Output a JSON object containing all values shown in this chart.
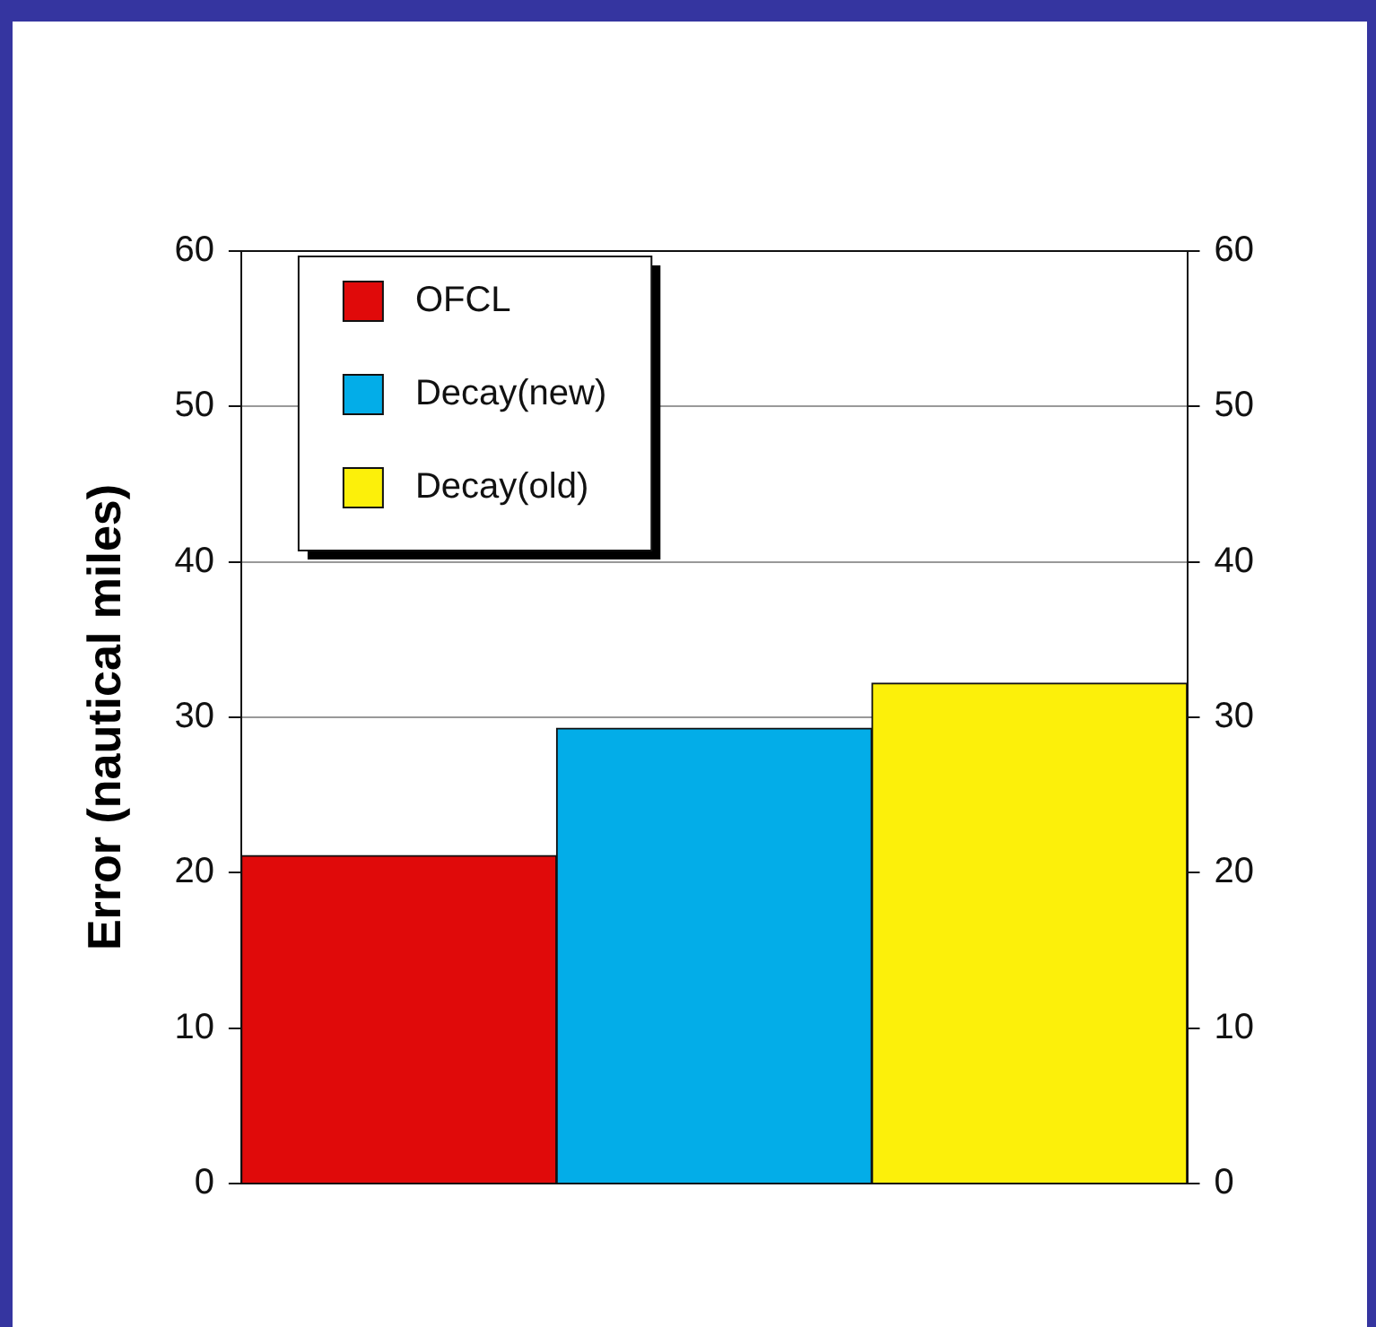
{
  "chart_data": {
    "type": "bar",
    "ylabel": "Error (nautical miles)",
    "categories": [
      null
    ],
    "series": [
      {
        "name": "OFCL",
        "color": "#e00a0a",
        "values": [
          21.1
        ]
      },
      {
        "name": "Decay(new)",
        "color": "#03ade8",
        "values": [
          29.3
        ]
      },
      {
        "name": "Decay(old)",
        "color": "#fcf00a",
        "values": [
          32.2
        ]
      }
    ],
    "ylim": [
      0,
      60
    ],
    "yticks": [
      0,
      10,
      20,
      30,
      40,
      50,
      60
    ],
    "y2lim": [
      0,
      60
    ],
    "y2ticks": [
      0,
      10,
      20,
      30,
      40,
      50,
      60
    ],
    "grid": "y",
    "legend": "top left",
    "tick_labels": "y"
  }
}
